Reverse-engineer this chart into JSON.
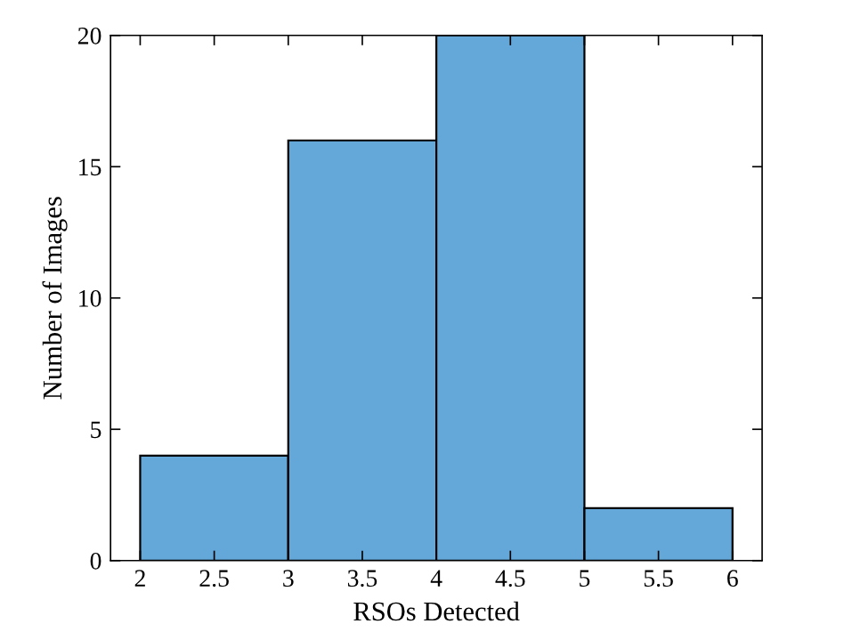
{
  "chart_data": {
    "type": "histogram",
    "xlabel": "RSOs Detected",
    "ylabel": "Number of Images",
    "bins": [
      2,
      3,
      4,
      5,
      6
    ],
    "values": [
      4,
      16,
      20,
      2
    ],
    "color": "#64a8da",
    "xlim": [
      1.8,
      6.2
    ],
    "xticks": [
      2,
      2.5,
      3,
      3.5,
      4,
      4.5,
      5,
      5.5,
      6
    ],
    "ylim": [
      0,
      20
    ],
    "yticks": [
      0,
      5,
      10,
      15,
      20
    ],
    "grid": false
  }
}
